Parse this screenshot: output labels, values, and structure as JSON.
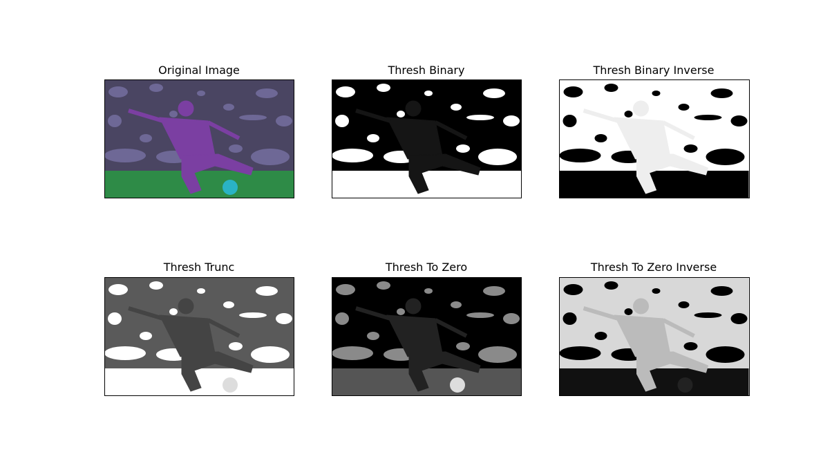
{
  "panels": [
    {
      "title": "Original Image"
    },
    {
      "title": "Thresh Binary"
    },
    {
      "title": "Thresh Binary Inverse"
    },
    {
      "title": "Thresh Trunc"
    },
    {
      "title": "Thresh To Zero"
    },
    {
      "title": "Thresh To Zero Inverse"
    }
  ]
}
